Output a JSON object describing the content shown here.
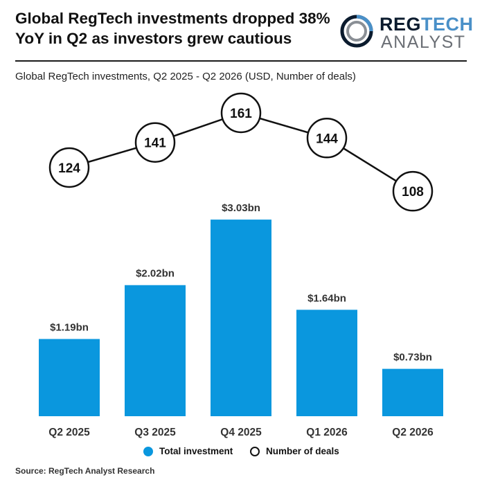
{
  "header": {
    "title_line1": "Global RegTech investments dropped 38%",
    "title_line2": "YoY in Q2 as investors grew cautious",
    "logo_line1_dark": "REG",
    "logo_line1_accent": "TECH",
    "logo_line2": "ANALYST"
  },
  "subtitle": "Global RegTech investments, Q2 2025 - Q2 2026 (USD, Number of deals)",
  "legend": {
    "investment_label": "Total investment",
    "deals_label": "Number of deals"
  },
  "source": "Source: RegTech Analyst Research",
  "colors": {
    "bar": "#0a97de",
    "line": "#111111",
    "accent": "#4a90c8"
  },
  "chart_data": {
    "type": "bar",
    "categories": [
      "Q2 2025",
      "Q3 2025",
      "Q4 2025",
      "Q1 2026",
      "Q2 2026"
    ],
    "series": [
      {
        "name": "Total investment",
        "type": "bar",
        "values": [
          1.19,
          2.02,
          3.03,
          1.64,
          0.73
        ],
        "labels": [
          "$1.19bn",
          "$2.02bn",
          "$3.03bn",
          "$1.64bn",
          "$0.73bn"
        ]
      },
      {
        "name": "Number of deals",
        "type": "line",
        "values": [
          124,
          141,
          161,
          144,
          108
        ]
      }
    ],
    "legend": "bottom"
  }
}
